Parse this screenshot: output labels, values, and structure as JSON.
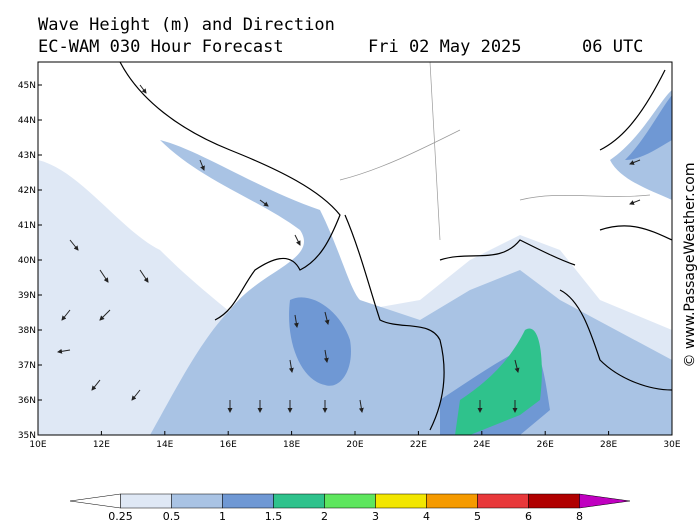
{
  "header": {
    "title": "Wave Height (m) and Direction",
    "model": "EC-WAM 030 Hour Forecast",
    "date": "Fri 02 May 2025",
    "time": "06 UTC"
  },
  "map": {
    "lat_labels": [
      "35N",
      "36N",
      "37N",
      "38N",
      "39N",
      "40N",
      "41N",
      "42N",
      "43N",
      "44N",
      "45N"
    ],
    "lon_labels": [
      "10E",
      "12E",
      "14E",
      "16E",
      "18E",
      "20E",
      "22E",
      "24E",
      "26E",
      "28E",
      "30E"
    ]
  },
  "legend": {
    "labels": [
      "0.25",
      "0.5",
      "1",
      "1.5",
      "2",
      "3",
      "4",
      "5",
      "6",
      "8"
    ],
    "colors": [
      "#ffffff",
      "#dfe8f5",
      "#a9c3e4",
      "#6f98d4",
      "#2fc28c",
      "#5ee65e",
      "#f2e600",
      "#f59a00",
      "#e8383a",
      "#b00000",
      "#c000c0"
    ]
  },
  "watermark": "© www.PassageWeather.com"
}
